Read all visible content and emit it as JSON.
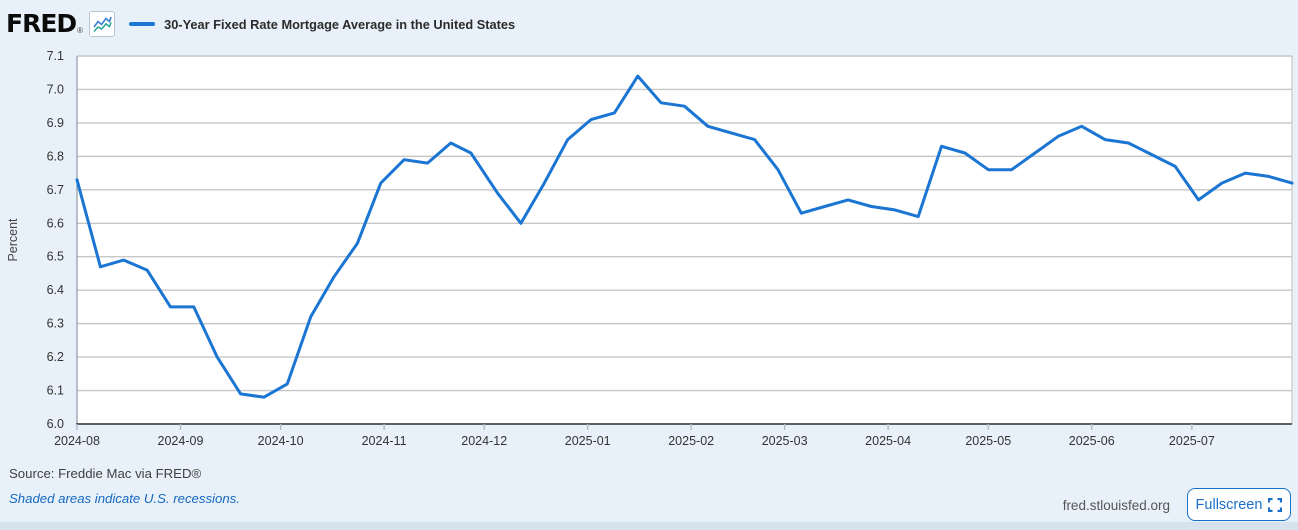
{
  "header": {
    "logo_text": "FRED",
    "registered": "®",
    "series_title": "30-Year Fixed Rate Mortgage Average in the United States"
  },
  "chart_data": {
    "type": "line",
    "title": "30-Year Fixed Rate Mortgage Average in the United States",
    "xlabel": "",
    "ylabel": "Percent",
    "ylim": [
      6.0,
      7.1
    ],
    "grid": true,
    "legend_position": "top-left",
    "y_tick_labels": [
      "6.0",
      "6.1",
      "6.2",
      "6.3",
      "6.4",
      "6.5",
      "6.6",
      "6.7",
      "6.8",
      "6.9",
      "7.0",
      "7.1"
    ],
    "x_tick_labels": [
      "2024-08",
      "2024-09",
      "2024-10",
      "2024-11",
      "2024-12",
      "2025-01",
      "2025-02",
      "2025-03",
      "2025-04",
      "2025-05",
      "2025-06",
      "2025-07"
    ],
    "series": [
      {
        "name": "30-Year Fixed Rate Mortgage Average in the United States",
        "frequency": "weekly",
        "dates": [
          "2024-08-01",
          "2024-08-08",
          "2024-08-15",
          "2024-08-22",
          "2024-08-29",
          "2024-09-05",
          "2024-09-12",
          "2024-09-19",
          "2024-09-26",
          "2024-10-03",
          "2024-10-10",
          "2024-10-17",
          "2024-10-24",
          "2024-10-31",
          "2024-11-07",
          "2024-11-14",
          "2024-11-21",
          "2024-11-27",
          "2024-12-05",
          "2024-12-12",
          "2024-12-19",
          "2024-12-26",
          "2025-01-02",
          "2025-01-09",
          "2025-01-16",
          "2025-01-23",
          "2025-01-30",
          "2025-02-06",
          "2025-02-13",
          "2025-02-20",
          "2025-02-27",
          "2025-03-06",
          "2025-03-13",
          "2025-03-20",
          "2025-03-27",
          "2025-04-03",
          "2025-04-10",
          "2025-04-17",
          "2025-04-24",
          "2025-05-01",
          "2025-05-08",
          "2025-05-15",
          "2025-05-22",
          "2025-05-29",
          "2025-06-05",
          "2025-06-12",
          "2025-06-18",
          "2025-06-26",
          "2025-07-03",
          "2025-07-10",
          "2025-07-17",
          "2025-07-24",
          "2025-07-31"
        ],
        "values": [
          6.73,
          6.47,
          6.49,
          6.46,
          6.35,
          6.35,
          6.2,
          6.09,
          6.08,
          6.12,
          6.32,
          6.44,
          6.54,
          6.72,
          6.79,
          6.78,
          6.84,
          6.81,
          6.69,
          6.6,
          6.72,
          6.85,
          6.91,
          6.93,
          7.04,
          6.96,
          6.95,
          6.89,
          6.87,
          6.85,
          6.76,
          6.63,
          6.65,
          6.67,
          6.65,
          6.64,
          6.62,
          6.83,
          6.81,
          6.76,
          6.76,
          6.81,
          6.86,
          6.89,
          6.85,
          6.84,
          6.81,
          6.77,
          6.67,
          6.72,
          6.75,
          6.74,
          6.72
        ]
      }
    ]
  },
  "footer": {
    "source": "Source: Freddie Mac via FRED®",
    "note": "Shaded areas indicate U.S. recessions.",
    "site": "fred.stlouisfed.org",
    "fullscreen_label": "Fullscreen"
  },
  "colors": {
    "background": "#e8f1f9",
    "plot_background": "#ffffff",
    "line": "#1b75d3",
    "gridline": "#c7c7c7",
    "logo_icon_blue": "#3a7fd5",
    "logo_icon_teal": "#2fa89a",
    "note_blue": "#1668c2",
    "button_blue": "#1a6fc8"
  }
}
